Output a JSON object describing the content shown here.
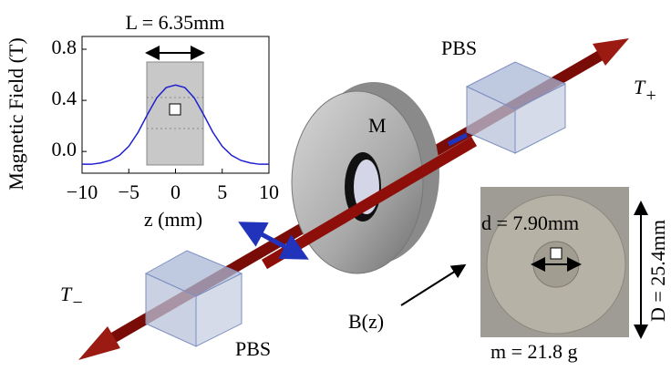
{
  "chart_data": {
    "type": "line",
    "annotation": "L = 6.35mm",
    "x_label": "z (mm)",
    "y_label": "Magnetic Field (T)",
    "x": [
      -10,
      -9,
      -8,
      -7,
      -6,
      -5,
      -4,
      -3,
      -2,
      -1,
      0,
      1,
      2,
      3,
      4,
      5,
      6,
      7,
      8,
      9,
      10
    ],
    "values": [
      -0.1,
      -0.1,
      -0.09,
      -0.07,
      -0.03,
      0.04,
      0.15,
      0.29,
      0.42,
      0.5,
      0.52,
      0.5,
      0.42,
      0.29,
      0.15,
      0.04,
      -0.03,
      -0.07,
      -0.09,
      -0.1,
      -0.1
    ],
    "color": "#1f1fd0",
    "xlim": [
      -10,
      10
    ],
    "ylim": [
      -0.17,
      0.9
    ],
    "xticks": [
      {
        "value": -10,
        "label": "−10"
      },
      {
        "value": -5,
        "label": "−5"
      },
      0,
      5,
      10
    ],
    "yticks": [
      {
        "value": 0,
        "label": "0.0"
      },
      {
        "value": 0.4,
        "label": "0.4"
      },
      {
        "value": 0.8,
        "label": "0.8"
      }
    ]
  },
  "diagram": {
    "pbs_top": "PBS",
    "pbs_bottom": "PBS",
    "magnet": "M",
    "t_plus": {
      "symbol": "T",
      "sub": "+"
    },
    "t_minus": {
      "symbol": "T",
      "sub": "−"
    },
    "field": "B(z)",
    "inner_diameter": "d = 7.90mm",
    "outer_diameter": "D = 25.4mm",
    "mass": "m = 21.8 g"
  }
}
